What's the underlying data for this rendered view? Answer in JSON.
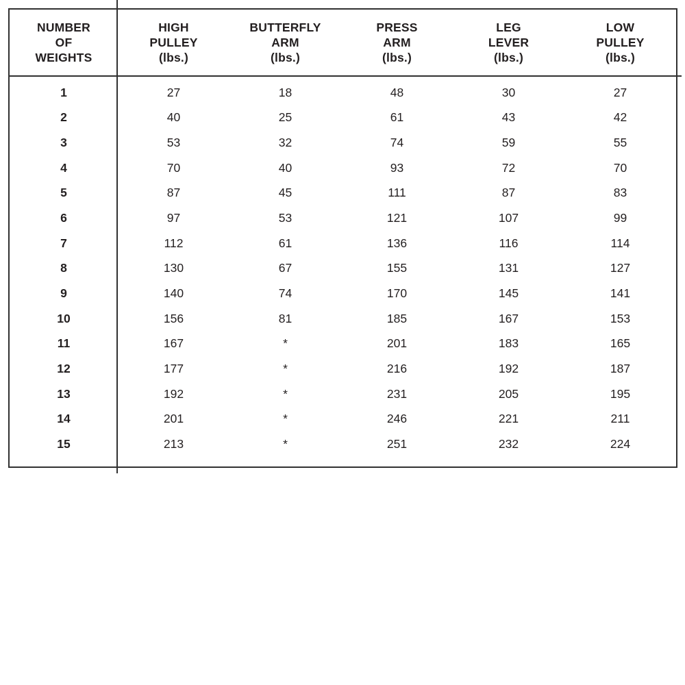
{
  "table": {
    "headers": [
      "NUMBER\nOF\nWEIGHTS",
      "HIGH\nPULLEY\n(lbs.)",
      "BUTTERFLY\nARM\n(lbs.)",
      "PRESS\nARM\n(lbs.)",
      "LEG\nLEVER\n(lbs.)",
      "LOW\nPULLEY\n(lbs.)"
    ],
    "column_keys": [
      "weights-count",
      "high-pulley",
      "butterfly-arm",
      "press-arm",
      "leg-lever",
      "low-pulley"
    ],
    "rows": [
      [
        "1",
        "27",
        "18",
        "48",
        "30",
        "27"
      ],
      [
        "2",
        "40",
        "25",
        "61",
        "43",
        "42"
      ],
      [
        "3",
        "53",
        "32",
        "74",
        "59",
        "55"
      ],
      [
        "4",
        "70",
        "40",
        "93",
        "72",
        "70"
      ],
      [
        "5",
        "87",
        "45",
        "111",
        "87",
        "83"
      ],
      [
        "6",
        "97",
        "53",
        "121",
        "107",
        "99"
      ],
      [
        "7",
        "112",
        "61",
        "136",
        "116",
        "114"
      ],
      [
        "8",
        "130",
        "67",
        "155",
        "131",
        "127"
      ],
      [
        "9",
        "140",
        "74",
        "170",
        "145",
        "141"
      ],
      [
        "10",
        "156",
        "81",
        "185",
        "167",
        "153"
      ],
      [
        "11",
        "167",
        "*",
        "201",
        "183",
        "165"
      ],
      [
        "12",
        "177",
        "*",
        "216",
        "192",
        "187"
      ],
      [
        "13",
        "192",
        "*",
        "231",
        "205",
        "195"
      ],
      [
        "14",
        "201",
        "*",
        "246",
        "221",
        "211"
      ],
      [
        "15",
        "213",
        "*",
        "251",
        "232",
        "224"
      ]
    ],
    "colors": {
      "text": "#231f20",
      "border": "#303030",
      "background": "#ffffff"
    }
  }
}
